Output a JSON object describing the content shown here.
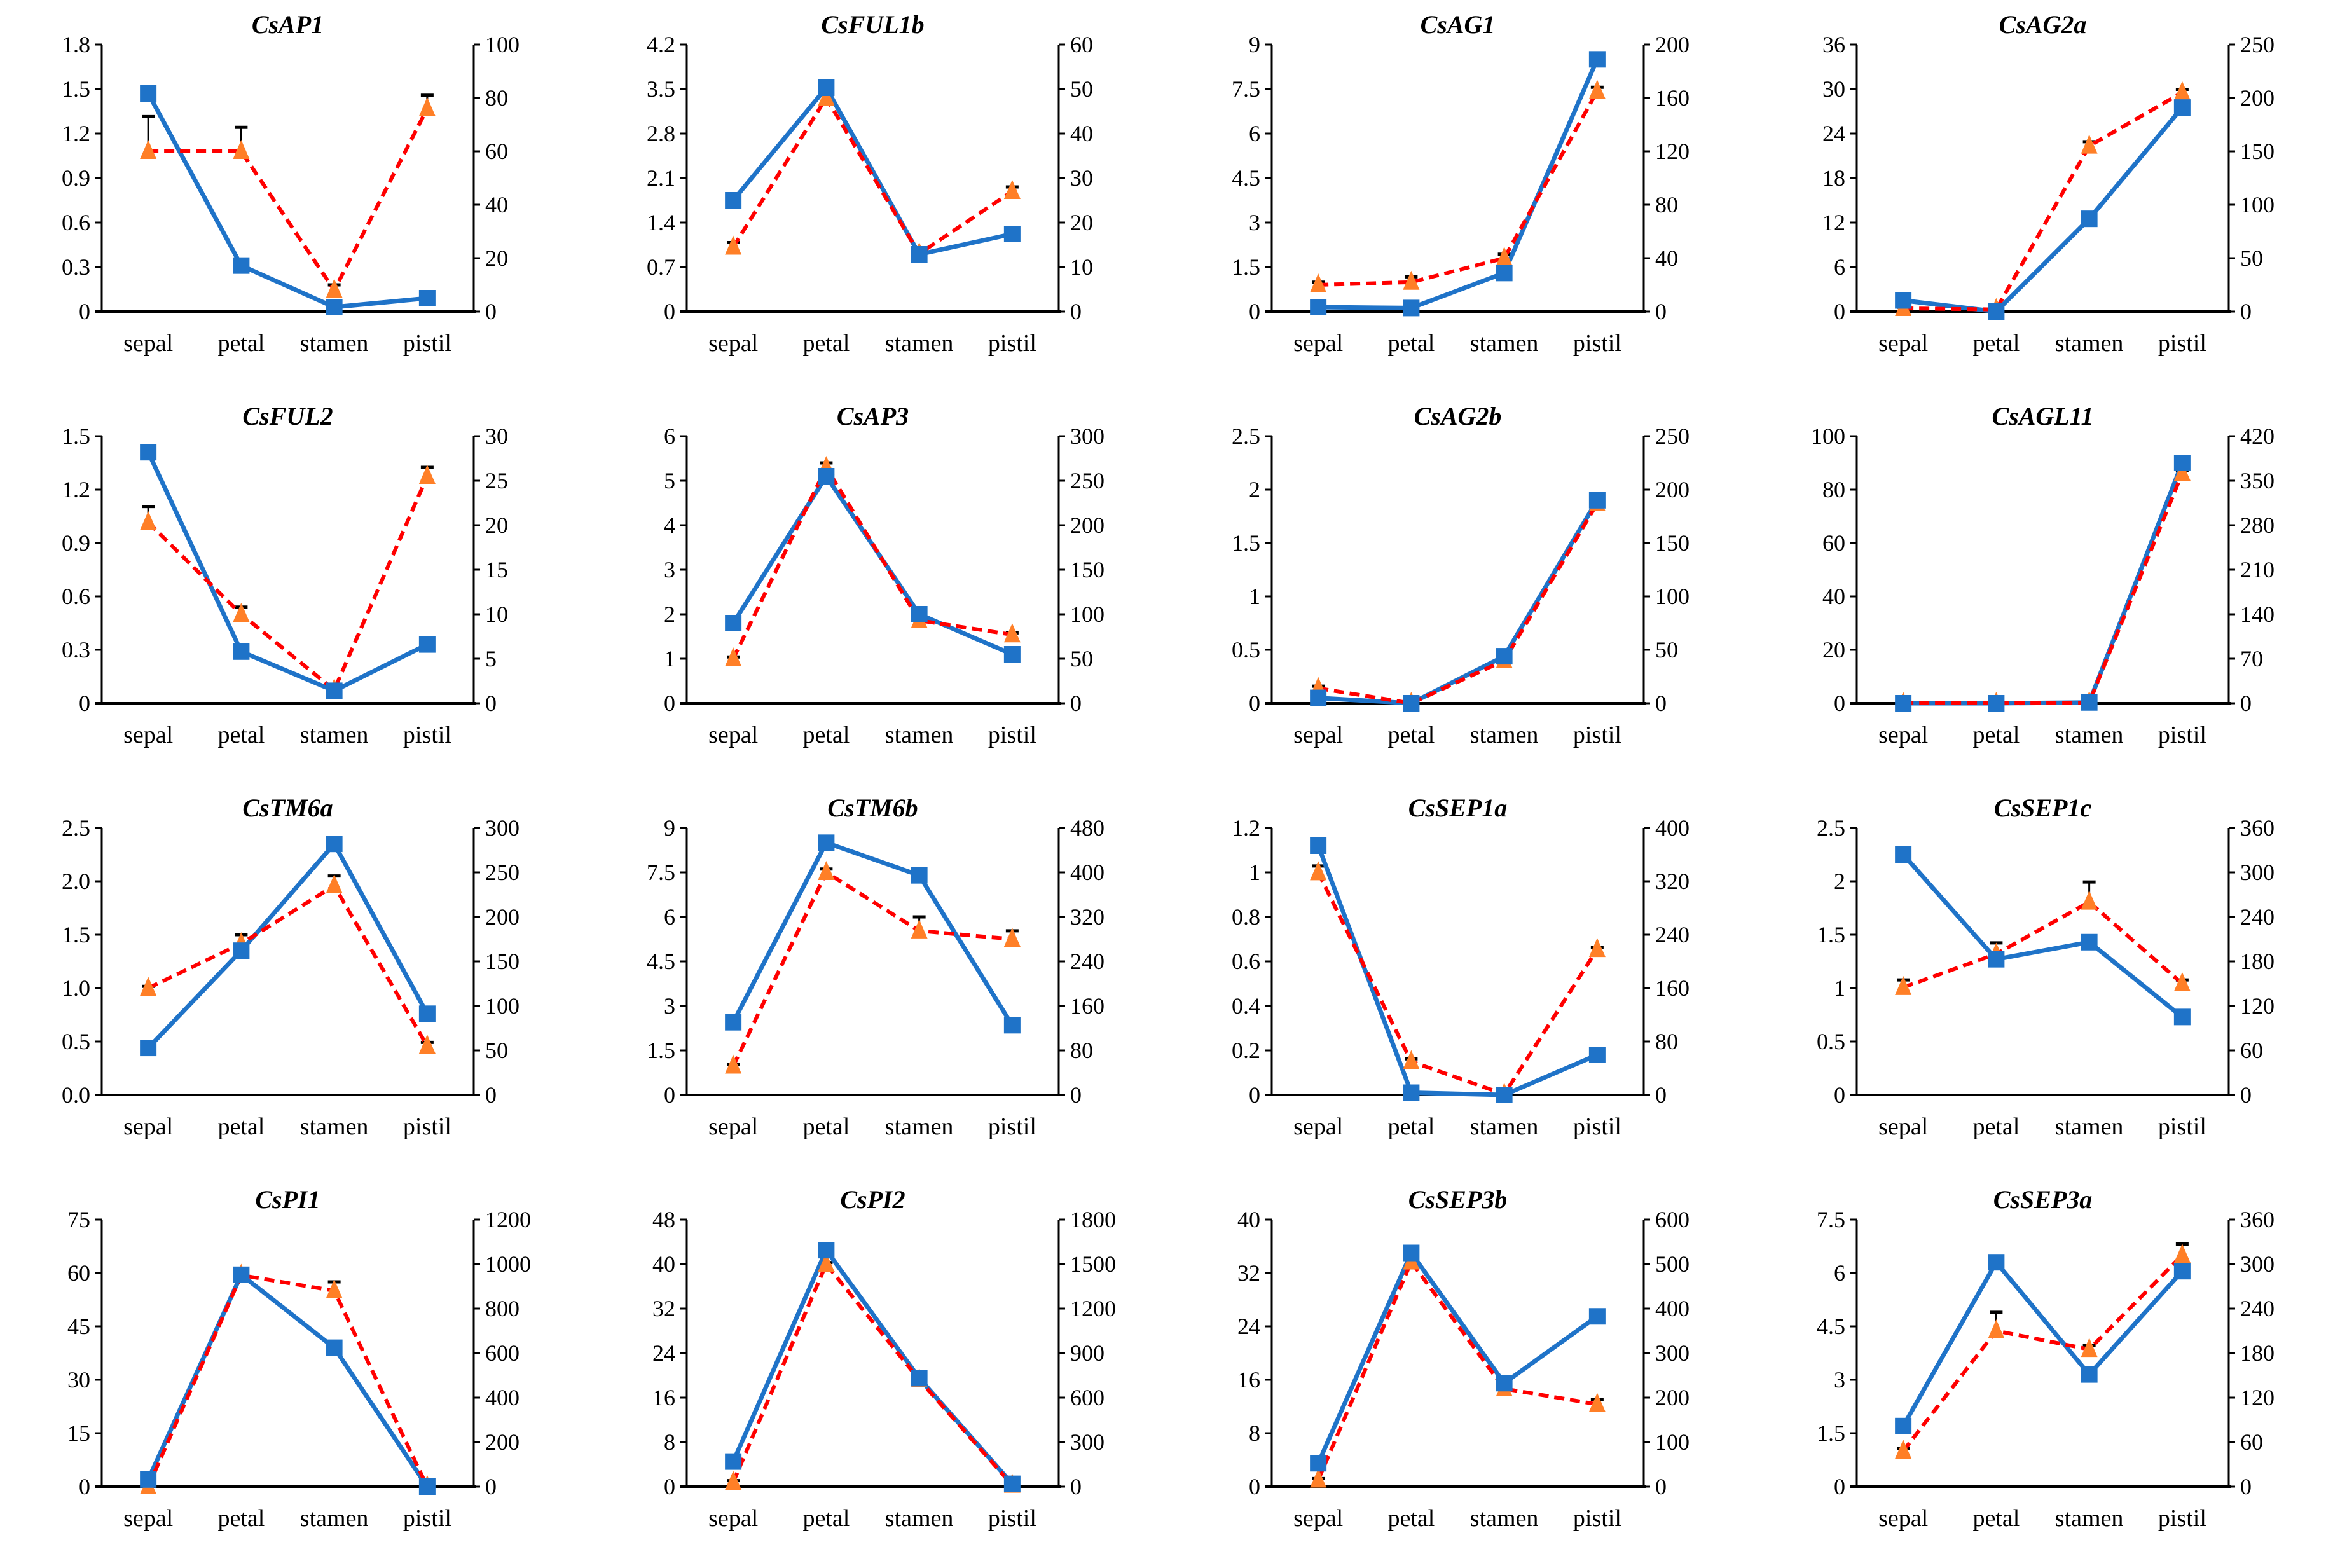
{
  "colors": {
    "left_series": "#1f73c8",
    "right_series_line": "#ff0000",
    "right_series_marker": "#ff7f27",
    "error_bar": "#000000"
  },
  "chart_data": [
    {
      "type": "line",
      "title": "CsAP1",
      "categories": [
        "sepal",
        "petal",
        "stamen",
        "pistil"
      ],
      "y_left": {
        "range": [
          0,
          1.8
        ],
        "ticks": [
          "0",
          "0.3",
          "0.6",
          "0.9",
          "1.2",
          "1.5",
          "1.8"
        ]
      },
      "y_right": {
        "range": [
          0,
          100
        ],
        "ticks": [
          "0",
          "20",
          "40",
          "60",
          "80",
          "100"
        ]
      },
      "left_series": [
        1.47,
        0.31,
        0.03,
        0.09
      ],
      "right_series": [
        60,
        60,
        8,
        76
      ],
      "right_error": [
        13,
        9,
        2,
        5
      ]
    },
    {
      "type": "line",
      "title": "CsFUL1b",
      "categories": [
        "sepal",
        "petal",
        "stamen",
        "pistil"
      ],
      "y_left": {
        "range": [
          0,
          4.2
        ],
        "ticks": [
          "0",
          "0.7",
          "1.4",
          "2.1",
          "2.8",
          "3.5",
          "4.2"
        ]
      },
      "y_right": {
        "range": [
          0,
          60
        ],
        "ticks": [
          "0",
          "10",
          "20",
          "30",
          "40",
          "50",
          "60"
        ]
      },
      "left_series": [
        1.75,
        3.52,
        0.9,
        1.22
      ],
      "right_series": [
        14.5,
        48,
        13,
        27
      ],
      "right_error": [
        1,
        1,
        0.5,
        1
      ]
    },
    {
      "type": "line",
      "title": "CsAG1",
      "categories": [
        "sepal",
        "petal",
        "stamen",
        "pistil"
      ],
      "y_left": {
        "range": [
          0,
          9
        ],
        "ticks": [
          "0",
          "1.5",
          "3",
          "4.5",
          "6",
          "7.5",
          "9"
        ]
      },
      "y_right": {
        "range": [
          0,
          200
        ],
        "ticks": [
          "0",
          "40",
          "80",
          "120",
          "160",
          "200"
        ]
      },
      "left_series": [
        0.15,
        0.12,
        1.3,
        8.5
      ],
      "right_series": [
        20,
        22,
        40,
        165
      ],
      "right_error": [
        2,
        4,
        3,
        3
      ]
    },
    {
      "type": "line",
      "title": "CsAG2a",
      "categories": [
        "sepal",
        "petal",
        "stamen",
        "pistil"
      ],
      "y_left": {
        "range": [
          0,
          36
        ],
        "ticks": [
          "0",
          "6",
          "12",
          "18",
          "24",
          "30",
          "36"
        ]
      },
      "y_right": {
        "range": [
          0,
          250
        ],
        "ticks": [
          "0",
          "50",
          "100",
          "150",
          "200",
          "250"
        ]
      },
      "left_series": [
        1.5,
        0,
        12.5,
        27.5
      ],
      "right_series": [
        3,
        2,
        155,
        205
      ],
      "right_error": [
        1,
        1,
        4,
        3
      ]
    },
    {
      "type": "line",
      "title": "CsFUL2",
      "categories": [
        "sepal",
        "petal",
        "stamen",
        "pistil"
      ],
      "y_left": {
        "range": [
          0,
          1.5
        ],
        "ticks": [
          "0",
          "0.3",
          "0.6",
          "0.9",
          "1.2",
          "1.5"
        ]
      },
      "y_right": {
        "range": [
          0,
          30
        ],
        "ticks": [
          "0",
          "5",
          "10",
          "15",
          "20",
          "25",
          "30"
        ]
      },
      "left_series": [
        1.41,
        0.29,
        0.07,
        0.33
      ],
      "right_series": [
        20.3,
        10,
        1.5,
        25.5
      ],
      "right_error": [
        1.8,
        0.8,
        0.3,
        1
      ]
    },
    {
      "type": "line",
      "title": "CsAP3",
      "categories": [
        "sepal",
        "petal",
        "stamen",
        "pistil"
      ],
      "y_left": {
        "range": [
          0,
          6
        ],
        "ticks": [
          "0",
          "1",
          "2",
          "3",
          "4",
          "5",
          "6"
        ]
      },
      "y_right": {
        "range": [
          0,
          300
        ],
        "ticks": [
          "0",
          "50",
          "100",
          "150",
          "200",
          "250",
          "300"
        ]
      },
      "left_series": [
        1.8,
        5.1,
        2.0,
        1.1
      ],
      "right_series": [
        50,
        265,
        93,
        77
      ],
      "right_error": [
        2,
        5,
        3,
        2
      ]
    },
    {
      "type": "line",
      "title": "CsAG2b",
      "categories": [
        "sepal",
        "petal",
        "stamen",
        "pistil"
      ],
      "y_left": {
        "range": [
          0,
          2.5
        ],
        "ticks": [
          "0",
          "0.5",
          "1",
          "1.5",
          "2",
          "2.5"
        ]
      },
      "y_right": {
        "range": [
          0,
          250
        ],
        "ticks": [
          "0",
          "50",
          "100",
          "150",
          "200",
          "250"
        ]
      },
      "left_series": [
        0.05,
        0,
        0.44,
        1.9
      ],
      "right_series": [
        14,
        0,
        40,
        187
      ],
      "right_error": [
        2,
        0.5,
        2,
        3
      ]
    },
    {
      "type": "line",
      "title": "CsAGL11",
      "categories": [
        "sepal",
        "petal",
        "stamen",
        "pistil"
      ],
      "y_left": {
        "range": [
          0,
          100
        ],
        "ticks": [
          "0",
          "20",
          "40",
          "60",
          "80",
          "100"
        ]
      },
      "y_right": {
        "range": [
          0,
          420
        ],
        "ticks": [
          "0",
          "70",
          "140",
          "210",
          "280",
          "350",
          "420"
        ]
      },
      "left_series": [
        0,
        0,
        0.3,
        90
      ],
      "right_series": [
        0,
        0,
        1,
        362
      ],
      "right_error": [
        0,
        0,
        0.5,
        4
      ]
    },
    {
      "type": "line",
      "title": "CsTM6a",
      "categories": [
        "sepal",
        "petal",
        "stamen",
        "pistil"
      ],
      "y_left": {
        "range": [
          0,
          2.5
        ],
        "ticks": [
          "0.0",
          "0.5",
          "1.0",
          "1.5",
          "2.0",
          "2.5"
        ]
      },
      "y_right": {
        "range": [
          0,
          300
        ],
        "ticks": [
          "0",
          "50",
          "100",
          "150",
          "200",
          "250",
          "300"
        ]
      },
      "left_series": [
        0.44,
        1.35,
        2.35,
        0.76
      ],
      "right_series": [
        120,
        170,
        235,
        55
      ],
      "right_error": [
        2,
        10,
        11,
        4
      ]
    },
    {
      "type": "line",
      "title": "CsTM6b",
      "categories": [
        "sepal",
        "petal",
        "stamen",
        "pistil"
      ],
      "y_left": {
        "range": [
          0,
          9
        ],
        "ticks": [
          "0",
          "1.5",
          "3",
          "4.5",
          "6",
          "7.5",
          "9"
        ]
      },
      "y_right": {
        "range": [
          0,
          480
        ],
        "ticks": [
          "0",
          "80",
          "160",
          "240",
          "320",
          "400",
          "480"
        ]
      },
      "left_series": [
        2.45,
        8.5,
        7.4,
        2.35
      ],
      "right_series": [
        52,
        400,
        295,
        280
      ],
      "right_error": [
        3,
        6,
        25,
        15
      ]
    },
    {
      "type": "line",
      "title": "CsSEP1a",
      "categories": [
        "sepal",
        "petal",
        "stamen",
        "pistil"
      ],
      "y_left": {
        "range": [
          0,
          1.2
        ],
        "ticks": [
          "0",
          "0.2",
          "0.4",
          "0.6",
          "0.8",
          "1",
          "1.2"
        ]
      },
      "y_right": {
        "range": [
          0,
          400
        ],
        "ticks": [
          "0",
          "80",
          "160",
          "240",
          "320",
          "400"
        ]
      },
      "left_series": [
        1.12,
        0.01,
        0,
        0.18
      ],
      "right_series": [
        333,
        50,
        1,
        218
      ],
      "right_error": [
        10,
        4,
        0.5,
        3
      ]
    },
    {
      "type": "line",
      "title": "CsSEP1c",
      "categories": [
        "sepal",
        "petal",
        "stamen",
        "pistil"
      ],
      "y_left": {
        "range": [
          0,
          2.5
        ],
        "ticks": [
          "0",
          "0.5",
          "1",
          "1.5",
          "2",
          "2.5"
        ]
      },
      "y_right": {
        "range": [
          0,
          360
        ],
        "ticks": [
          "0",
          "60",
          "120",
          "180",
          "240",
          "300",
          "360"
        ]
      },
      "left_series": [
        2.25,
        1.27,
        1.43,
        0.73
      ],
      "right_series": [
        145,
        190,
        260,
        150
      ],
      "right_error": [
        10,
        15,
        27,
        5
      ]
    },
    {
      "type": "line",
      "title": "CsPI1",
      "categories": [
        "sepal",
        "petal",
        "stamen",
        "pistil"
      ],
      "y_left": {
        "range": [
          0,
          75
        ],
        "ticks": [
          "0",
          "15",
          "30",
          "45",
          "60",
          "75"
        ]
      },
      "y_right": {
        "range": [
          0,
          1200
        ],
        "ticks": [
          "0",
          "200",
          "400",
          "600",
          "800",
          "1000",
          "1200"
        ]
      },
      "left_series": [
        2,
        59.5,
        39,
        0
      ],
      "right_series": [
        0,
        950,
        880,
        0
      ],
      "right_error": [
        2,
        8,
        40,
        2
      ]
    },
    {
      "type": "line",
      "title": "CsPI2",
      "categories": [
        "sepal",
        "petal",
        "stamen",
        "pistil"
      ],
      "y_left": {
        "range": [
          0,
          48
        ],
        "ticks": [
          "0",
          "8",
          "16",
          "24",
          "32",
          "40",
          "48"
        ]
      },
      "y_right": {
        "range": [
          0,
          1800
        ],
        "ticks": [
          "0",
          "300",
          "600",
          "900",
          "1200",
          "1500",
          "1800"
        ]
      },
      "left_series": [
        4.5,
        42.5,
        19.5,
        0.5
      ],
      "right_series": [
        30,
        1500,
        720,
        10
      ],
      "right_error": [
        10,
        10,
        15,
        3
      ]
    },
    {
      "type": "line",
      "title": "CsSEP3b",
      "categories": [
        "sepal",
        "petal",
        "stamen",
        "pistil"
      ],
      "y_left": {
        "range": [
          0,
          40
        ],
        "ticks": [
          "0",
          "8",
          "16",
          "24",
          "32",
          "40"
        ]
      },
      "y_right": {
        "range": [
          0,
          600
        ],
        "ticks": [
          "0",
          "100",
          "200",
          "300",
          "400",
          "500",
          "600"
        ]
      },
      "left_series": [
        3.5,
        35,
        15.5,
        25.5
      ],
      "right_series": [
        15,
        505,
        220,
        185
      ],
      "right_error": [
        3,
        5,
        4,
        10
      ]
    },
    {
      "type": "line",
      "title": "CsSEP3a",
      "categories": [
        "sepal",
        "petal",
        "stamen",
        "pistil"
      ],
      "y_left": {
        "range": [
          0,
          7.5
        ],
        "ticks": [
          "0",
          "1.5",
          "3",
          "4.5",
          "6",
          "7.5"
        ]
      },
      "y_right": {
        "range": [
          0,
          360
        ],
        "ticks": [
          "0",
          "60",
          "120",
          "180",
          "240",
          "300",
          "360"
        ]
      },
      "left_series": [
        1.7,
        6.3,
        3.15,
        6.05
      ],
      "right_series": [
        48,
        210,
        185,
        312
      ],
      "right_error": [
        3,
        25,
        5,
        15
      ]
    }
  ]
}
